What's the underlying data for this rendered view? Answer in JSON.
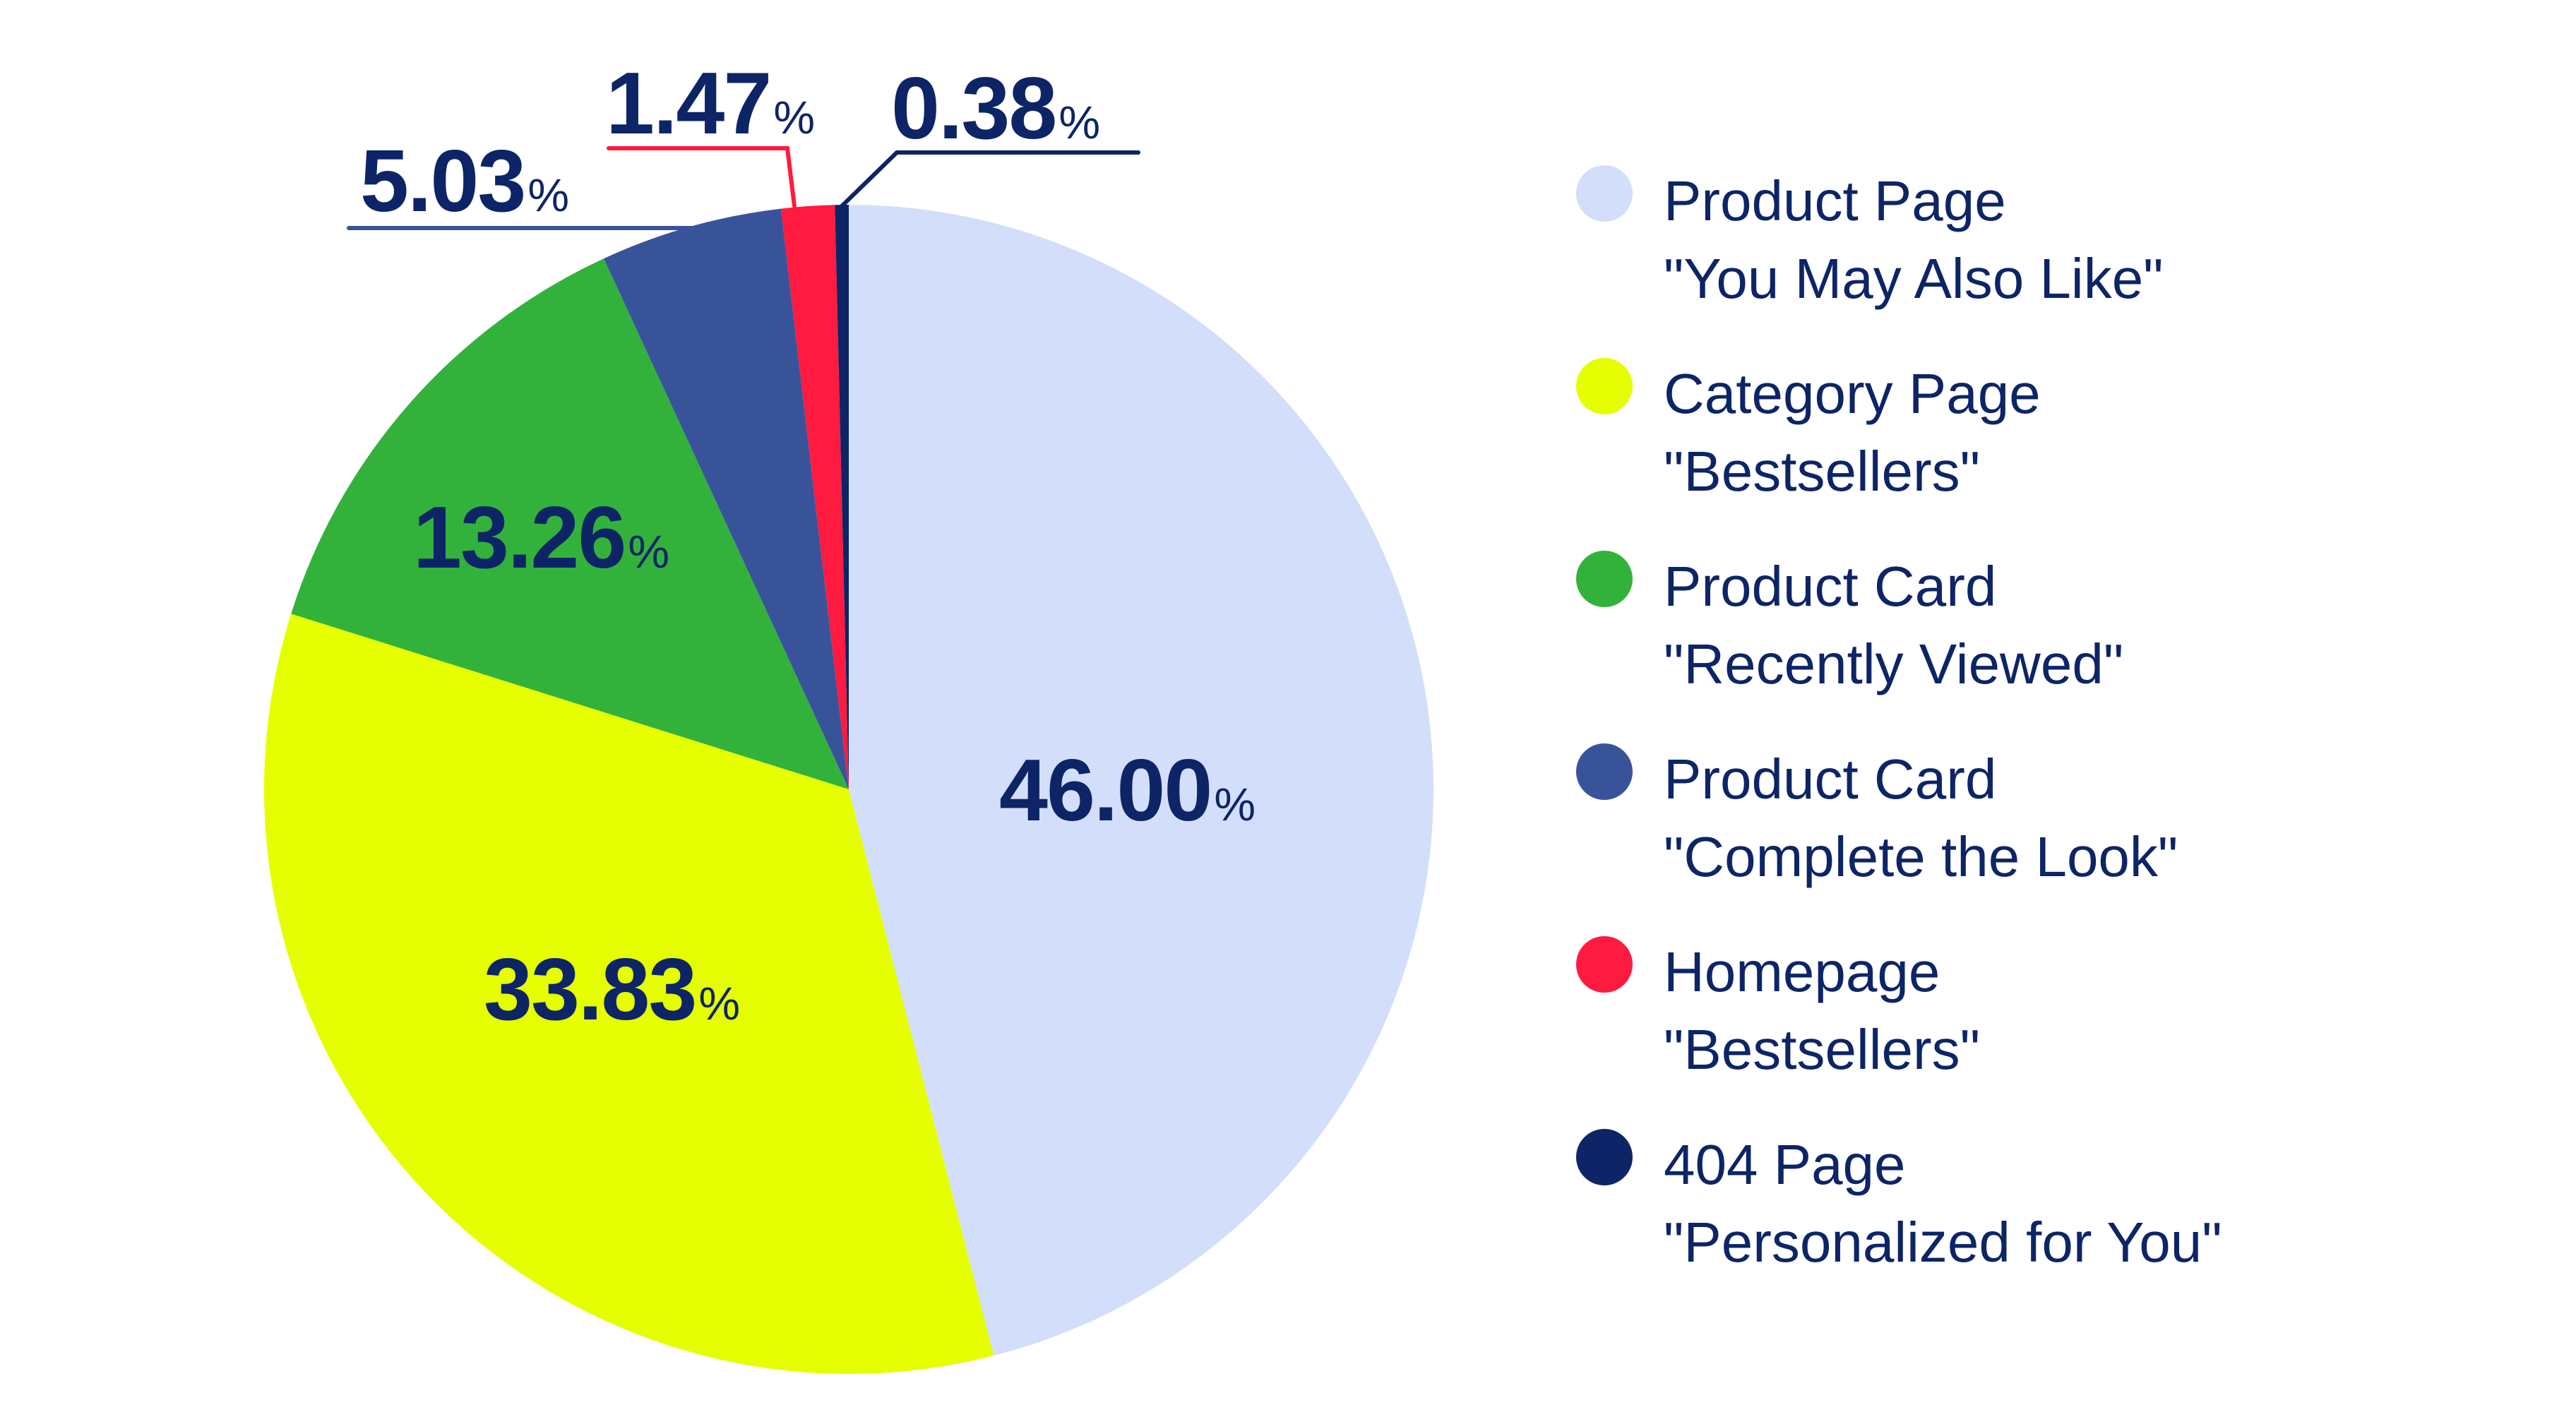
{
  "chart_data": {
    "type": "pie",
    "title": "",
    "categories": [
      "Product Page \"You May Also Like\"",
      "Category Page \"Bestsellers\"",
      "Product Card \"Recently Viewed\"",
      "Product Card \"Complete the Look\"",
      "Homepage \"Bestsellers\"",
      "404 Page \"Personalized for You\""
    ],
    "values": [
      46.0,
      33.83,
      13.26,
      5.03,
      1.47,
      0.38
    ],
    "unit": "%",
    "colors": [
      "#d3defa",
      "#e5ff00",
      "#33b23b",
      "#38539a",
      "#ff1a40",
      "#0d2566"
    ],
    "start_angle": "12 o'clock",
    "direction": "clockwise",
    "legend_position": "right"
  },
  "slices": [
    {
      "value": "46.00",
      "sign": "%",
      "color": "#d3defa",
      "legend_line1": "Product Page",
      "legend_line2": "\"You May Also Like\""
    },
    {
      "value": "33.83",
      "sign": "%",
      "color": "#e5ff00",
      "legend_line1": "Category Page",
      "legend_line2": "\"Bestsellers\""
    },
    {
      "value": "13.26",
      "sign": "%",
      "color": "#33b23b",
      "legend_line1": "Product Card",
      "legend_line2": "\"Recently Viewed\""
    },
    {
      "value": "5.03",
      "sign": "%",
      "color": "#38539a",
      "legend_line1": "Product Card",
      "legend_line2": "\"Complete the Look\""
    },
    {
      "value": "1.47",
      "sign": "%",
      "color": "#ff1a40",
      "legend_line1": "Homepage",
      "legend_line2": "\"Bestsellers\""
    },
    {
      "value": "0.38",
      "sign": "%",
      "color": "#0d2566",
      "legend_line1": "404 Page",
      "legend_line2": "\"Personalized for You\""
    }
  ],
  "colors": {
    "text": "#0d2566",
    "leader_red": "#ff1a40",
    "leader_blue": "#38539a",
    "leader_navy": "#0d2566"
  }
}
